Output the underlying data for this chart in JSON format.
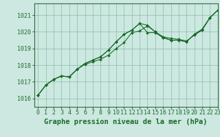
{
  "title": "Graphe pression niveau de la mer (hPa)",
  "xlim": [
    -0.5,
    23
  ],
  "ylim": [
    1015.5,
    1021.7
  ],
  "yticks": [
    1016,
    1017,
    1018,
    1019,
    1020,
    1021
  ],
  "xtick_labels": [
    "0",
    "1",
    "2",
    "3",
    "4",
    "5",
    "6",
    "7",
    "8",
    "9",
    "10",
    "11",
    "12",
    "13",
    "14",
    "15",
    "16",
    "17",
    "18",
    "19",
    "20",
    "21",
    "22",
    "23"
  ],
  "xticks": [
    0,
    1,
    2,
    3,
    4,
    5,
    6,
    7,
    8,
    9,
    10,
    11,
    12,
    13,
    14,
    15,
    16,
    17,
    18,
    19,
    20,
    21,
    22,
    23
  ],
  "background_color": "#cce8e0",
  "plot_bg_color": "#cce8e0",
  "label_bg_color": "#a8d8cc",
  "grid_color": "#88bbaa",
  "line_color": "#1a6b2a",
  "series": [
    [
      1016.2,
      1016.8,
      1017.15,
      1017.35,
      1017.3,
      1017.75,
      1018.05,
      1018.2,
      1018.35,
      1018.6,
      1019.0,
      1019.35,
      1019.95,
      1020.05,
      1020.35,
      1020.0,
      1019.7,
      1019.6,
      1019.55,
      1019.45,
      1019.8,
      1020.1,
      1020.85,
      1021.3
    ],
    [
      1016.2,
      1016.8,
      1017.15,
      1017.35,
      1017.3,
      1017.75,
      1018.1,
      1018.3,
      1018.5,
      1018.9,
      1019.4,
      1019.85,
      1020.1,
      1020.5,
      1019.95,
      1019.95,
      1019.65,
      1019.5,
      1019.5,
      1019.4,
      1019.85,
      1020.15,
      1020.85,
      1021.3
    ],
    [
      1016.2,
      1016.8,
      1017.15,
      1017.35,
      1017.3,
      1017.75,
      1018.1,
      1018.3,
      1018.5,
      1018.9,
      1019.4,
      1019.85,
      1020.1,
      1020.5,
      1020.4,
      1020.0,
      1019.65,
      1019.5,
      1019.5,
      1019.4,
      1019.85,
      1020.15,
      1020.85,
      1021.3
    ]
  ],
  "tick_fontsize": 6,
  "xlabel_fontsize": 7.5,
  "figsize": [
    3.2,
    2.0
  ],
  "dpi": 100
}
